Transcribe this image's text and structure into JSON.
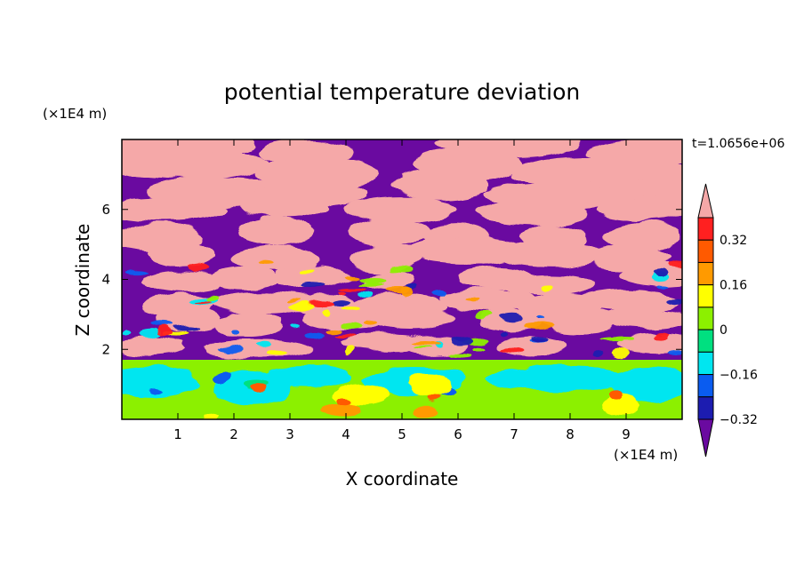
{
  "chart_data": {
    "type": "heatmap",
    "title": "potential temperature deviation",
    "xlabel": "X coordinate",
    "ylabel": "Z coordinate",
    "x_unit": "(×1E4 m)",
    "y_unit": "(×1E4 m)",
    "time_label": "t=1.0656e+06",
    "xlim": [
      0,
      10
    ],
    "ylim": [
      0,
      8
    ],
    "x_ticks": [
      1,
      2,
      3,
      4,
      5,
      6,
      7,
      8,
      9
    ],
    "y_ticks": [
      2,
      4,
      6
    ],
    "colorbar": {
      "levels": [
        -0.4,
        -0.32,
        -0.24,
        -0.16,
        -0.08,
        0,
        0.08,
        0.16,
        0.24,
        0.32,
        0.4
      ],
      "colors": [
        "#6a0aa0",
        "#1c1cb0",
        "#0a5cf0",
        "#00e6f0",
        "#00e080",
        "#8cf000",
        "#ffff00",
        "#ff9a00",
        "#ff5a00",
        "#ff2020",
        "#f5a8a8"
      ],
      "under_color": "#6a0aa0",
      "over_color": "#f5a8a8",
      "tick_labels": [
        "0.32",
        "0.16",
        "0",
        "−0.16",
        "−0.32"
      ]
    },
    "field_description": {
      "lower_layer_top_z": 1.6,
      "upper_layer_top_z": 8.0,
      "regime": "upper layer alternates between +0.4 and -0.4, lower layer mostly -0.12 to 0.08 with warm plumes near x=2.5, 3.8-4.2, 5-5.6, 8.8-9"
    }
  }
}
